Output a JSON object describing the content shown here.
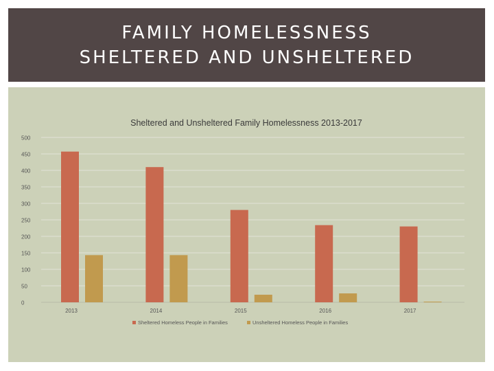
{
  "slide": {
    "title_line1": "FAMILY HOMELESSNESS",
    "title_line2": "SHELTERED AND UNSHELTERED"
  },
  "colors": {
    "title_bg": "#514646",
    "panel_bg": "#ccd1b8",
    "sheltered": "#c8694f",
    "unsheltered": "#c19a4e"
  },
  "chart_data": {
    "type": "bar",
    "title": "Sheltered and Unsheltered Family Homelessness 2013-2017",
    "categories": [
      "2013",
      "2014",
      "2015",
      "2016",
      "2017"
    ],
    "series": [
      {
        "name": "Sheltered Homeless People in Families",
        "values": [
          457,
          410,
          280,
          234,
          230
        ]
      },
      {
        "name": "Unsheltered Homeless People in Families",
        "values": [
          143,
          143,
          23,
          27,
          2
        ]
      }
    ],
    "xlabel": "",
    "ylabel": "",
    "ylim": [
      0,
      500
    ],
    "yticks": [
      "0",
      "50",
      "100",
      "150",
      "200",
      "250",
      "300",
      "350",
      "400",
      "450",
      "500"
    ],
    "grid": true,
    "legend_position": "bottom"
  }
}
